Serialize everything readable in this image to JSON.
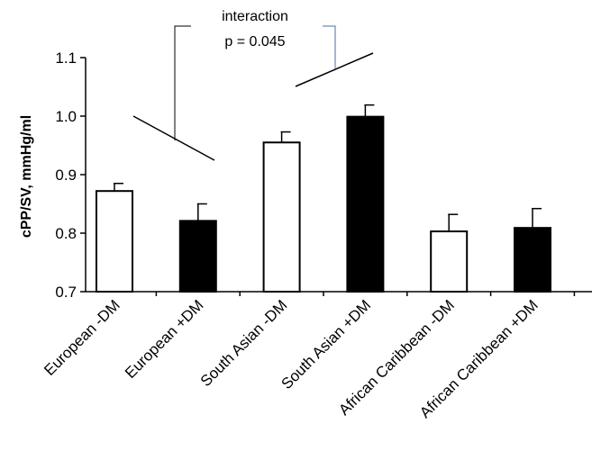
{
  "chart_data": {
    "type": "bar",
    "categories": [
      "European -DM",
      "European +DM",
      "South Asian -DM",
      "South Asian +DM",
      "African Caribbean -DM",
      "African Caribbean +DM"
    ],
    "values": [
      0.872,
      0.821,
      0.955,
      0.999,
      0.803,
      0.809
    ],
    "errors": [
      0.013,
      0.029,
      0.018,
      0.02,
      0.029,
      0.033
    ],
    "diabetes": [
      false,
      true,
      false,
      true,
      false,
      true
    ],
    "colors": {
      "no_dm": "#ffffff",
      "dm": "#000000",
      "outline": "#000000"
    },
    "ylabel": "cPP/SV, mmHg/ml",
    "ylim": [
      0.7,
      1.1
    ],
    "yticks": [
      "0.7",
      "0.8",
      "0.9",
      "1.0",
      "1.1"
    ],
    "grid": false,
    "annotation": {
      "line1": "interaction",
      "line2": "p = 0.045"
    }
  }
}
